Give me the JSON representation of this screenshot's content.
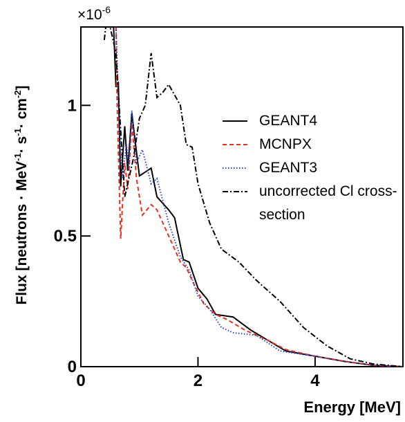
{
  "chart_data": {
    "type": "line",
    "multiplier_parts": [
      "×10",
      "-6"
    ],
    "x_label": "Energy [MeV]",
    "y_label_parts": [
      "Flux [neutrons · MeV",
      "-1",
      "· s",
      "-1",
      "· cm",
      "-2",
      "]"
    ],
    "xlim": [
      0,
      5.5
    ],
    "ylim": [
      0,
      1.3
    ],
    "xticks": [
      0,
      2,
      4
    ],
    "yticks": [
      0,
      0.5,
      1
    ],
    "series": [
      {
        "name": "GEANT4",
        "color": "#000000",
        "dash": "solid",
        "x": [
          0.55,
          0.6,
          0.64,
          0.68,
          0.75,
          0.8,
          0.87,
          1.0,
          1.2,
          1.3,
          1.5,
          1.6,
          1.75,
          1.85,
          2.0,
          2.15,
          2.3,
          2.6,
          2.9,
          3.2,
          3.5,
          4.0,
          4.5,
          5.0,
          5.5
        ],
        "values": [
          1.35,
          1.07,
          1.09,
          0.69,
          0.92,
          0.75,
          0.97,
          0.73,
          0.76,
          0.65,
          0.6,
          0.57,
          0.41,
          0.4,
          0.3,
          0.26,
          0.2,
          0.19,
          0.14,
          0.1,
          0.06,
          0.04,
          0.02,
          0.005,
          0
        ]
      },
      {
        "name": "MCNPX",
        "color": "#e8301c",
        "dash": "dashed",
        "x": [
          0.6,
          0.62,
          0.68,
          0.75,
          0.8,
          0.87,
          0.95,
          1.05,
          1.2,
          1.3,
          1.5,
          1.7,
          1.8,
          1.9,
          2.1,
          2.3,
          2.5,
          2.8,
          3.2,
          3.5,
          4.0,
          4.5,
          5.0,
          5.5
        ],
        "values": [
          1.3,
          1.0,
          0.49,
          0.78,
          0.68,
          0.93,
          0.72,
          0.58,
          0.62,
          0.6,
          0.5,
          0.4,
          0.38,
          0.33,
          0.24,
          0.2,
          0.18,
          0.14,
          0.1,
          0.065,
          0.04,
          0.02,
          0.005,
          0
        ]
      },
      {
        "name": "GEANT3",
        "color": "#2040c8",
        "dash": "dotted",
        "x": [
          0.6,
          0.65,
          0.7,
          0.78,
          0.82,
          0.87,
          0.95,
          1.05,
          1.2,
          1.3,
          1.5,
          1.7,
          1.85,
          2.0,
          2.2,
          2.4,
          2.6,
          3.0,
          3.4,
          4.0,
          4.5,
          5.0,
          5.5
        ],
        "values": [
          1.3,
          0.95,
          0.72,
          0.85,
          0.75,
          0.98,
          0.78,
          0.83,
          0.7,
          0.72,
          0.55,
          0.42,
          0.37,
          0.27,
          0.22,
          0.15,
          0.13,
          0.12,
          0.06,
          0.04,
          0.02,
          0.005,
          0
        ]
      },
      {
        "name": "uncorrected Cl cross-section",
        "color": "#000000",
        "dash": "dashdot",
        "x": [
          0.4,
          0.45,
          0.6,
          0.75,
          0.9,
          1.0,
          1.1,
          1.2,
          1.3,
          1.4,
          1.5,
          1.7,
          1.8,
          1.9,
          2.0,
          2.2,
          2.4,
          2.7,
          3.0,
          3.4,
          3.8,
          4.2,
          4.6,
          5.0,
          5.5
        ],
        "values": [
          1.25,
          1.35,
          1.2,
          0.65,
          0.8,
          0.95,
          1.0,
          1.2,
          1.03,
          1.05,
          1.08,
          1.0,
          0.85,
          0.84,
          0.7,
          0.55,
          0.45,
          0.4,
          0.33,
          0.25,
          0.15,
          0.08,
          0.03,
          0.01,
          0
        ]
      }
    ]
  }
}
